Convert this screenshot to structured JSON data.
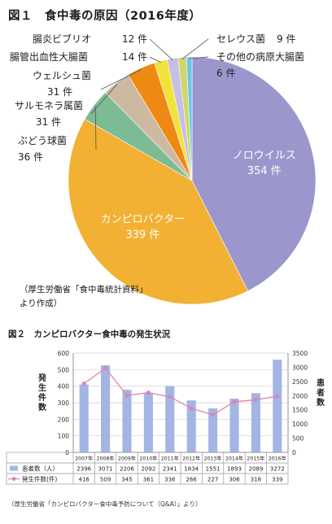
{
  "figure1": {
    "title": "図１　食中毒の原因（2016年度）",
    "source_line1": "（厚生労働省「食中毒統計資料」",
    "source_line2": "より作成）"
  },
  "figure2": {
    "title": "図２　カンピロバクター食中毒の発生状況",
    "left_axis_label": "発生件数",
    "right_axis_label": "患者数",
    "source": "（厚生労働省「カンピロバクター食中毒予防について（Q&A）」より）"
  },
  "chart_data": [
    {
      "type": "pie",
      "title": "図１　食中毒の原因（2016年度）",
      "slices": [
        {
          "name": "ノロウイルス",
          "value": 354,
          "value_label": "354 件",
          "color": "#9b97cc"
        },
        {
          "name": "カンピロバクター",
          "value": 339,
          "value_label": "339 件",
          "color": "#f2b133"
        },
        {
          "name": "ぶどう球菌",
          "value": 36,
          "value_label": "36 件",
          "color": "#7dbb94"
        },
        {
          "name": "サルモネラ属菌",
          "value": 31,
          "value_label": "31 件",
          "color": "#cdb9a2"
        },
        {
          "name": "ウェルシュ菌",
          "value": 31,
          "value_label": "31 件",
          "color": "#ee8a14"
        },
        {
          "name": "腸管出血性大腸菌",
          "value": 14,
          "value_label": "14 件",
          "color": "#f0e33a"
        },
        {
          "name": "腸炎ビブリオ",
          "value": 12,
          "value_label": "12 件",
          "color": "#c7c0e2"
        },
        {
          "name": "セレウス菌",
          "value": 9,
          "value_label": "9 件",
          "color": "#cfd66a"
        },
        {
          "name": "その他の病原大腸菌",
          "value": 6,
          "value_label": "6 件",
          "color": "#6cc6e8"
        }
      ]
    },
    {
      "type": "bar",
      "title": "図２　カンピロバクター食中毒の発生状況",
      "categories": [
        "2007年",
        "2008年",
        "2009年",
        "2010年",
        "2011年",
        "2012年",
        "2013年",
        "2014年",
        "2015年",
        "2016年"
      ],
      "series": [
        {
          "name": "患者数（人）",
          "type": "bar",
          "axis": "right",
          "color": "#a3b5e3",
          "values": [
            2396,
            3071,
            2206,
            2092,
            2341,
            1834,
            1551,
            1893,
            2089,
            3272
          ]
        },
        {
          "name": "発生件数(件)",
          "type": "line",
          "axis": "left",
          "color": "#e0a0c2",
          "values": [
            416,
            509,
            345,
            361,
            336,
            266,
            227,
            306,
            318,
            339
          ]
        }
      ],
      "ylabel": "発生件数",
      "ylabel_right": "患者数",
      "ylim": [
        0,
        600
      ],
      "ylim_right": [
        0,
        3500
      ],
      "yticks": [
        0,
        100,
        200,
        300,
        400,
        500,
        600
      ],
      "yticks_right": [
        0,
        500,
        1000,
        1500,
        2000,
        2500,
        3000,
        3500
      ],
      "grid": true,
      "legend": "table-below"
    }
  ]
}
